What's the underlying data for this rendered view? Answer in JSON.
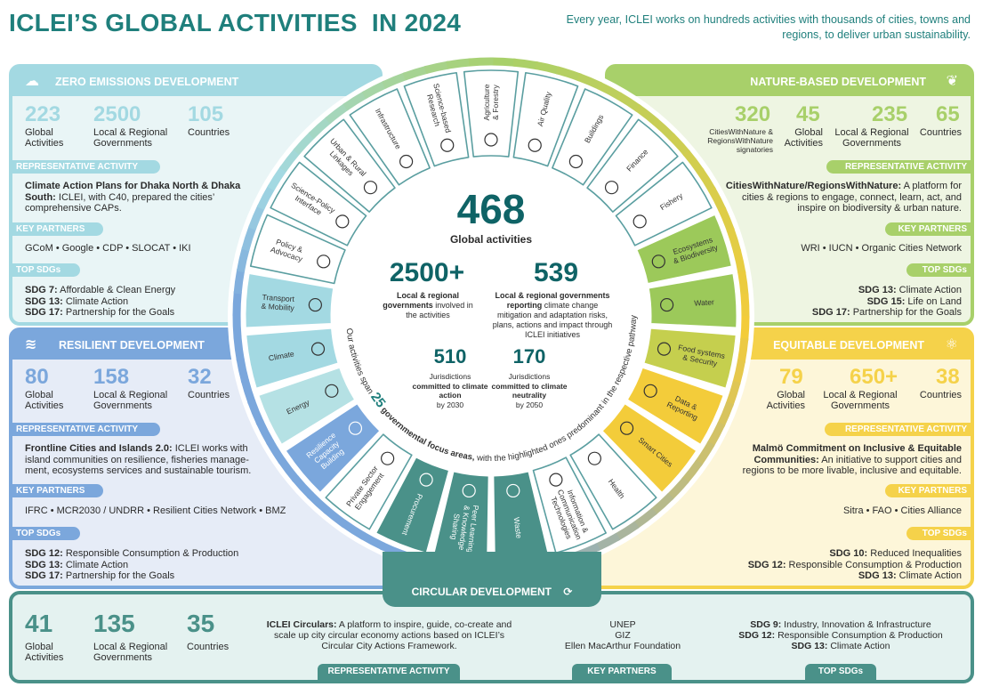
{
  "title": "ICLEI’S GLOBAL ACTIVITIES  IN 2024",
  "tagline": "Every year, ICLEI works on hundreds activities with thousands of cities, towns and regions, to deliver urban sustainability.",
  "colors": {
    "title": "#1f7f7c",
    "zero": "#a3d9e2",
    "resilient": "#7ba7dc",
    "nature": "#a8d06a",
    "equitable": "#f5d24a",
    "circular": "#4a9189"
  },
  "labels": {
    "rep": "REPRESENTATIVE ACTIVITY",
    "partners": "KEY PARTNERS",
    "sdgs": "TOP SDGs"
  },
  "zero": {
    "title": "ZERO EMISSIONS DEVELOPMENT",
    "stats": [
      {
        "value": "223",
        "label1": "Global",
        "label2": "Activities"
      },
      {
        "value": "2500",
        "label1": "Local & Regional",
        "label2": "Governments"
      },
      {
        "value": "105",
        "label1": "Countries",
        "label2": ""
      }
    ],
    "activity_bold": "Climate Action Plans for Dhaka North & Dhaka South:",
    "activity_text": " ICLEI, with C40, prepared the cities’ comprehensive CAPs.",
    "partners": "GCoM  •  Google  •  CDP  •  SLOCAT  •  IKI",
    "sdgs": [
      {
        "code": "SDG 7:",
        "name": " Affordable & Clean Energy"
      },
      {
        "code": "SDG 13:",
        "name": " Climate Action"
      },
      {
        "code": "SDG 17:",
        "name": " Partnership for the Goals"
      }
    ]
  },
  "resilient": {
    "title": "RESILIENT DEVELOPMENT",
    "stats": [
      {
        "value": "80",
        "label1": "Global",
        "label2": "Activities"
      },
      {
        "value": "158",
        "label1": "Local & Regional",
        "label2": "Governments"
      },
      {
        "value": "32",
        "label1": "Countries",
        "label2": ""
      }
    ],
    "activity_bold": "Frontline Cities and Islands 2.0:",
    "activity_text": " ICLEI works with island communities on resilience, fisheries manage-ment, ecosystems services and sustainable tourism.",
    "partners": "IFRC  •  MCR2030 / UNDRR  •  Resilient Cities Network  •  BMZ",
    "sdgs": [
      {
        "code": "SDG 12:",
        "name": " Responsible Consumption & Production"
      },
      {
        "code": "SDG 13:",
        "name": " Climate Action"
      },
      {
        "code": "SDG 17:",
        "name": " Partnership for the Goals"
      }
    ]
  },
  "nature": {
    "title": "NATURE-BASED DEVELOPMENT",
    "stats": [
      {
        "value": "320",
        "label1": "CitiesWithNature &",
        "label2": "RegionsWithNature",
        "label3": "signatories"
      },
      {
        "value": "45",
        "label1": "Global",
        "label2": "Activities"
      },
      {
        "value": "235",
        "label1": "Local & Regional",
        "label2": "Governments"
      },
      {
        "value": "65",
        "label1": "Countries",
        "label2": ""
      }
    ],
    "activity_bold": "CitiesWithNature/RegionsWithNature:",
    "activity_text": " A platform for cities & regions to engage, connect, learn, act, and inspire on biodiversity & urban nature.",
    "partners": "WRI  •  IUCN  •  Organic Cities Network",
    "sdgs": [
      {
        "code": "SDG 13:",
        "name": " Climate Action"
      },
      {
        "code": "SDG 15:",
        "name": " Life on Land"
      },
      {
        "code": "SDG 17:",
        "name": " Partnership for the Goals"
      }
    ]
  },
  "equitable": {
    "title": "EQUITABLE DEVELOPMENT",
    "stats": [
      {
        "value": "79",
        "label1": "Global",
        "label2": "Activities"
      },
      {
        "value": "650+",
        "label1": "Local & Regional",
        "label2": "Governments"
      },
      {
        "value": "38",
        "label1": "Countries",
        "label2": ""
      }
    ],
    "activity_bold": "Malmö Commitment on Inclusive & Equitable Communities:",
    "activity_text": " An initiative to support cities and regions to be more livable, inclusive and equitable.",
    "partners": "Sitra  •  FAO  •  Cities Alliance",
    "sdgs": [
      {
        "code": "SDG 10:",
        "name": " Reduced Inequalities"
      },
      {
        "code": "SDG 12:",
        "name": " Responsible Consumption & Production"
      },
      {
        "code": "SDG 13:",
        "name": " Climate Action"
      }
    ]
  },
  "circular": {
    "title": "CIRCULAR DEVELOPMENT",
    "stats": [
      {
        "value": "41",
        "label1": "Global",
        "label2": "Activities"
      },
      {
        "value": "135",
        "label1": "Local & Regional",
        "label2": "Governments"
      },
      {
        "value": "35",
        "label1": "Countries",
        "label2": ""
      }
    ],
    "activity_bold": "ICLEI Circulars:",
    "activity_text": " A platform to inspire, guide, co-create and scale up city circular economy actions based on ICLEI’s Circular City Actions Framework.",
    "partners": [
      "UNEP",
      "GIZ",
      "Ellen MacArthur Foundation"
    ],
    "sdgs": [
      {
        "code": "SDG 9:",
        "name": " Industry, Innovation & Infrastructure"
      },
      {
        "code": "SDG 12:",
        "name": " Responsible Consumption & Production"
      },
      {
        "code": "SDG 13:",
        "name": " Climate Action"
      }
    ]
  },
  "center": {
    "total": "468",
    "total_label": "Global activities",
    "gov": "2500+",
    "gov_bold": "Local & regional governments",
    "gov_rest": " involved in the activities",
    "reporting": "539",
    "reporting_bold": "Local & regional governments reporting",
    "reporting_rest": " climate change mitigation and adaptation risks, plans, actions and impact through ICLEI initiatives",
    "j2030": "510",
    "j2030_l1": "Jurisdictions",
    "j2030_bold": "committed to climate action",
    "j2030_l3": "by 2030",
    "j2050": "170",
    "j2050_l1": "Jurisdictions",
    "j2050_bold": "committed to climate neutrality",
    "j2050_l3": "by 2050",
    "arc_a": "Our activities span ",
    "arc_num": "25",
    "arc_b": " governmental focus areas,",
    "arc_c": " with the highlighted ones predominant in the respective pathway"
  },
  "wheel": {
    "fills": {
      "white": "#ffffff",
      "lightblue": "#a3d9e2",
      "lightteal": "#b5e1e4",
      "blue": "#7ba7dc",
      "teal": "#4a9189",
      "green": "#9cc95a",
      "yellow": "#f3cc3a",
      "greenyellow": "#c5cf4e"
    },
    "segments": [
      {
        "lines": [
          "Private Sector",
          "Engagement"
        ],
        "icon": "puzzle",
        "style": "white"
      },
      {
        "lines": [
          "Resilience",
          "Capacity",
          "Building"
        ],
        "icon": "shield",
        "style": "blue"
      },
      {
        "lines": [
          "Energy"
        ],
        "icon": "plug",
        "style": "lightteal"
      },
      {
        "lines": [
          "Climate"
        ],
        "icon": "globe",
        "style": "lightblue"
      },
      {
        "lines": [
          "Transport",
          "& Mobility"
        ],
        "icon": "bicycle",
        "style": "lightblue"
      },
      {
        "lines": [
          "Policy &",
          "Advocacy"
        ],
        "icon": "megaphone",
        "style": "white"
      },
      {
        "lines": [
          "Science-Policy",
          "Interface"
        ],
        "icon": "handshake",
        "style": "white"
      },
      {
        "lines": [
          "Urban & Rural",
          "Linkages"
        ],
        "icon": "route",
        "style": "white"
      },
      {
        "lines": [
          "Infrastructure"
        ],
        "icon": "tower",
        "style": "white"
      },
      {
        "lines": [
          "Science-based",
          "Research"
        ],
        "icon": "brain",
        "style": "white"
      },
      {
        "lines": [
          "Agriculture",
          "& Forestry"
        ],
        "icon": "tree",
        "style": "white"
      },
      {
        "lines": [
          "Air Quality"
        ],
        "icon": "wind",
        "style": "white"
      },
      {
        "lines": [
          "Buildings"
        ],
        "icon": "building",
        "style": "white"
      },
      {
        "lines": [
          "Finance"
        ],
        "icon": "piggy-bank",
        "style": "white"
      },
      {
        "lines": [
          "Fishery"
        ],
        "icon": "fish",
        "style": "white"
      },
      {
        "lines": [
          "Ecosystems",
          "& Biodiversity"
        ],
        "icon": "cycle-leaf",
        "style": "green"
      },
      {
        "lines": [
          "Water"
        ],
        "icon": "water-drop",
        "style": "green"
      },
      {
        "lines": [
          "Food systems",
          "& Security"
        ],
        "icon": "wheat",
        "style": "greenyellow"
      },
      {
        "lines": [
          "Data &",
          "Reporting"
        ],
        "icon": "chart-board",
        "style": "yellow"
      },
      {
        "lines": [
          "Smart Cities"
        ],
        "icon": "signal",
        "style": "yellow"
      },
      {
        "lines": [
          "Health"
        ],
        "icon": "medical-kit",
        "style": "white"
      },
      {
        "lines": [
          "Information &",
          "Communication",
          "Technologies"
        ],
        "icon": "chat",
        "style": "white"
      },
      {
        "lines": [
          "Waste"
        ],
        "icon": "recycle",
        "style": "teal"
      },
      {
        "lines": [
          "Peer Learning",
          "& Knowledge",
          "Sharing"
        ],
        "icon": "people-exchange",
        "style": "teal"
      },
      {
        "lines": [
          "Procurement"
        ],
        "icon": "money-bag",
        "style": "teal"
      }
    ]
  }
}
